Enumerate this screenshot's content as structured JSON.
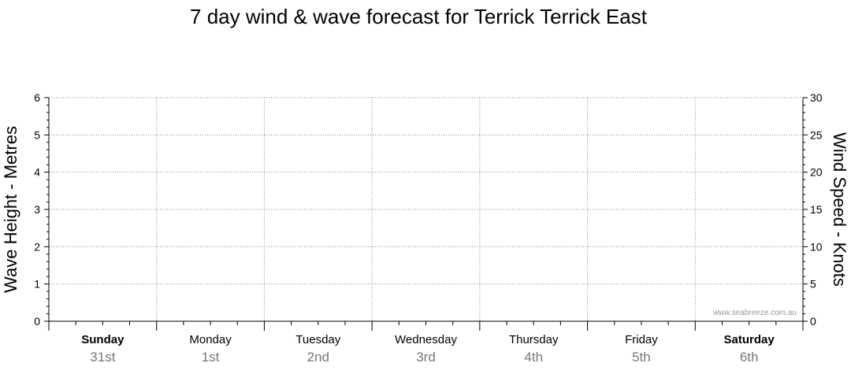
{
  "chart_data": {
    "type": "line",
    "title": "7 day wind & wave forecast for Terrick Terrick East",
    "y_left_label": "Wave Height - Metres",
    "y_right_label": "Wind Speed - Knots",
    "y_left_range": [
      0,
      6
    ],
    "y_left_ticks": [
      "0",
      "1",
      "2",
      "3",
      "4",
      "5",
      "6"
    ],
    "y_right_range": [
      0,
      30
    ],
    "y_right_ticks": [
      "0",
      "5",
      "10",
      "15",
      "20",
      "25",
      "30"
    ],
    "grid": true,
    "days": [
      {
        "day": "Sunday",
        "date": "31st",
        "bold": true
      },
      {
        "day": "Monday",
        "date": "1st",
        "bold": false
      },
      {
        "day": "Tuesday",
        "date": "2nd",
        "bold": false
      },
      {
        "day": "Wednesday",
        "date": "3rd",
        "bold": false
      },
      {
        "day": "Thursday",
        "date": "4th",
        "bold": false
      },
      {
        "day": "Friday",
        "date": "5th",
        "bold": false
      },
      {
        "day": "Saturday",
        "date": "6th",
        "bold": true
      }
    ],
    "series": [],
    "watermark": "www.seabreeze.com.au"
  }
}
